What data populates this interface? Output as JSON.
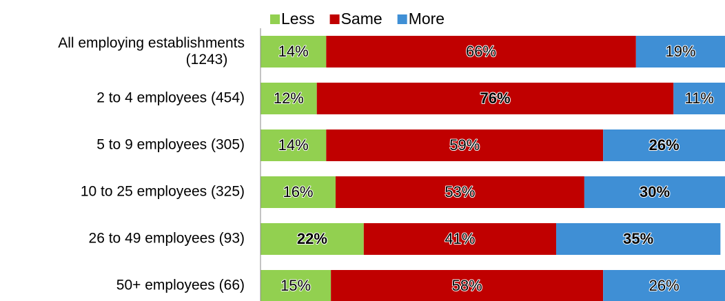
{
  "chart_data": {
    "type": "stacked_bar_horizontal",
    "categories": [
      "All employing establishments\n(1243)",
      "2 to 4 employees (454)",
      "5 to 9 employees (305)",
      "10 to 25 employees (325)",
      "26 to 49 employees (93)",
      "50+ employees (66)"
    ],
    "series": [
      {
        "name": "Less",
        "color": "#92d050",
        "values": [
          14,
          12,
          14,
          16,
          22,
          15
        ],
        "value_labels": [
          "14%",
          "12%",
          "14%",
          "16%",
          "22%",
          "15%"
        ],
        "bold": [
          false,
          false,
          false,
          false,
          true,
          false
        ]
      },
      {
        "name": "Same",
        "color": "#c00000",
        "values": [
          66,
          76,
          59,
          53,
          41,
          58
        ],
        "value_labels": [
          "66%",
          "76%",
          "59%",
          "53%",
          "41%",
          "58%"
        ],
        "bold": [
          false,
          true,
          false,
          false,
          false,
          false
        ]
      },
      {
        "name": "More",
        "color": "#3f8fd5",
        "values": [
          19,
          11,
          26,
          30,
          35,
          26
        ],
        "value_labels": [
          "19%",
          "11%",
          "26%",
          "30%",
          "35%",
          "26%"
        ],
        "bold": [
          false,
          false,
          true,
          true,
          true,
          false
        ]
      }
    ],
    "xlim": [
      0,
      100
    ],
    "legend": "top"
  }
}
